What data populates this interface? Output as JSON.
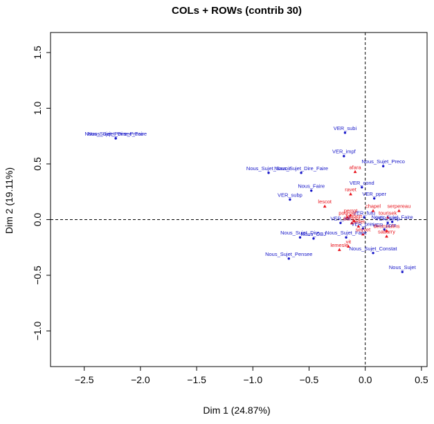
{
  "chart_data": {
    "type": "scatter",
    "title": "COLs + ROWs (contrib 30)",
    "xlabel": "Dim 1 (24.87%)",
    "ylabel": "Dim 2 (19.11%)",
    "xlim": [
      -2.8,
      0.55
    ],
    "ylim": [
      -1.32,
      1.68
    ],
    "xticks": [
      -2.5,
      -2.0,
      -1.5,
      -1.0,
      -0.5,
      0.0,
      0.5
    ],
    "xtick_labels": [
      "−2.5",
      "−2.0",
      "−1.5",
      "−1.0",
      "−0.5",
      "0.0",
      "0.5"
    ],
    "yticks": [
      -1.0,
      -0.5,
      0.0,
      0.5,
      1.0,
      1.5
    ],
    "ytick_labels": [
      "−1.0",
      "−0.5",
      "0.0",
      "0.5",
      "1.0",
      "1.5"
    ],
    "grid": false,
    "reference_lines": {
      "x": 0,
      "y": 0,
      "style": "dashed"
    },
    "series": [
      {
        "color": "#1515c8",
        "marker": "circle",
        "points": [
          {
            "label": "Nous_Sujet_Dire_Preco",
            "x": -2.22,
            "y": 0.73
          },
          {
            "label": "Nous_Sujet_Pensee_Faire",
            "x": -2.22,
            "y": 0.73
          },
          {
            "label": "VER_subi",
            "x": -0.18,
            "y": 0.78
          },
          {
            "label": "VER_impf",
            "x": -0.19,
            "y": 0.57
          },
          {
            "label": "Nous_Sujet_Preco",
            "x": 0.16,
            "y": 0.48
          },
          {
            "label": "Nous_Sujet_Savoir",
            "x": -0.86,
            "y": 0.42
          },
          {
            "label": "Nous_Sujet_Dire_Faire",
            "x": -0.57,
            "y": 0.42
          },
          {
            "label": "VER_cond",
            "x": -0.03,
            "y": 0.29
          },
          {
            "label": "Nous_Faire",
            "x": -0.48,
            "y": 0.26
          },
          {
            "label": "VER_subp",
            "x": -0.67,
            "y": 0.18
          },
          {
            "label": "VER_pper",
            "x": 0.08,
            "y": 0.19
          },
          {
            "label": "VER_futu",
            "x": -0.01,
            "y": 0.02
          },
          {
            "label": "VER_infi",
            "x": -0.22,
            "y": -0.03
          },
          {
            "label": "Nous_Sujet_Faire",
            "x": 0.24,
            "y": -0.02
          },
          {
            "label": "VER_simp",
            "x": 0.2,
            "y": -0.03
          },
          {
            "label": "VER_pres",
            "x": -0.02,
            "y": -0.08
          },
          {
            "label": "VER_ppre",
            "x": 0.17,
            "y": -0.09
          },
          {
            "label": "Nous_Sujet_Dire",
            "x": -0.58,
            "y": -0.16
          },
          {
            "label": "Nous_OBJ",
            "x": -0.46,
            "y": -0.17
          },
          {
            "label": "Nous_Sujet_Faire",
            "x": -0.17,
            "y": -0.16
          },
          {
            "label": "Nous_Sujet_Constat",
            "x": 0.07,
            "y": -0.3
          },
          {
            "label": "Nous_Sujet_Pensee",
            "x": -0.68,
            "y": -0.35
          },
          {
            "label": "Nous_Sujet",
            "x": 0.33,
            "y": -0.47
          }
        ]
      },
      {
        "color": "#e8121a",
        "marker": "triangle",
        "points": [
          {
            "label": "afara",
            "x": -0.09,
            "y": 0.43
          },
          {
            "label": "ravet",
            "x": -0.13,
            "y": 0.23
          },
          {
            "label": "chapel",
            "x": 0.07,
            "y": 0.08
          },
          {
            "label": "serpereau",
            "x": 0.3,
            "y": 0.08
          },
          {
            "label": "lescot",
            "x": -0.36,
            "y": 0.12
          },
          {
            "label": "perrot",
            "x": -0.13,
            "y": 0.04
          },
          {
            "label": "pourcet",
            "x": -0.16,
            "y": 0.02
          },
          {
            "label": "tourisek",
            "x": 0.2,
            "y": 0.02
          },
          {
            "label": "faubert",
            "x": -0.1,
            "y": -0.01
          },
          {
            "label": "dumont",
            "x": -0.12,
            "y": -0.03
          },
          {
            "label": "bellet",
            "x": -0.06,
            "y": -0.06
          },
          {
            "label": "desmoulins",
            "x": 0.19,
            "y": -0.1
          },
          {
            "label": "seyvet",
            "x": -0.02,
            "y": -0.13
          },
          {
            "label": "sabarry",
            "x": 0.19,
            "y": -0.15
          },
          {
            "label": "vit",
            "x": -0.15,
            "y": -0.24
          },
          {
            "label": "lemesle",
            "x": -0.23,
            "y": -0.27
          }
        ]
      }
    ]
  }
}
